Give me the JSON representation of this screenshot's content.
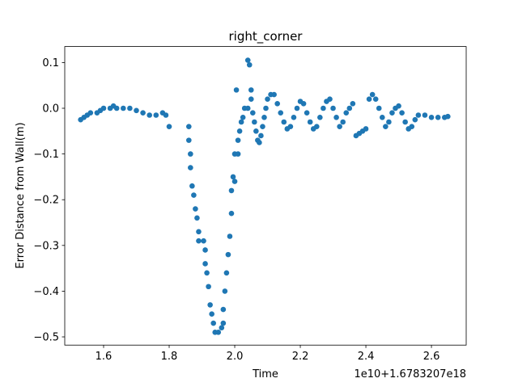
{
  "chart_data": {
    "type": "scatter",
    "title": "right_corner",
    "x_label": "Time",
    "y_label": "Error Distance from Wall(m)",
    "x_offset_text": "1e10+1.6783207e18",
    "color": "#1f77b4",
    "xlim": [
      1.4815,
      2.706
    ],
    "ylim": [
      -0.518,
      0.135
    ],
    "xticks": [
      1.6,
      1.8,
      {
        "value": 2,
        "label": "2.0"
      },
      2.2,
      2.4,
      2.6
    ],
    "yticks": [
      {
        "value": -0.5,
        "label": "−0.5"
      },
      {
        "value": -0.4,
        "label": "−0.4"
      },
      {
        "value": -0.3,
        "label": "−0.3"
      },
      {
        "value": -0.2,
        "label": "−0.2"
      },
      {
        "value": -0.1,
        "label": "−0.1"
      },
      {
        "value": 0,
        "label": "0.0"
      },
      0.1
    ],
    "x": [
      1.53,
      1.54,
      1.55,
      1.56,
      1.58,
      1.59,
      1.6,
      1.62,
      1.63,
      1.64,
      1.66,
      1.68,
      1.7,
      1.72,
      1.74,
      1.76,
      1.78,
      1.79,
      1.8,
      1.86,
      1.86,
      1.865,
      1.865,
      1.87,
      1.875,
      1.88,
      1.885,
      1.89,
      1.89,
      1.905,
      1.91,
      1.91,
      1.915,
      1.92,
      1.925,
      1.93,
      1.935,
      1.94,
      1.95,
      1.96,
      1.965,
      1.965,
      1.97,
      1.975,
      1.98,
      1.985,
      1.99,
      1.99,
      1.995,
      2.0,
      2.0,
      2.005,
      2.01,
      2.01,
      2.015,
      2.02,
      2.025,
      2.03,
      2.04,
      2.04,
      2.045,
      2.05,
      2.05,
      2.055,
      2.06,
      2.065,
      2.07,
      2.075,
      2.08,
      2.085,
      2.09,
      2.095,
      2.1,
      2.11,
      2.12,
      2.13,
      2.14,
      2.15,
      2.16,
      2.17,
      2.18,
      2.19,
      2.2,
      2.21,
      2.22,
      2.23,
      2.24,
      2.25,
      2.26,
      2.27,
      2.28,
      2.29,
      2.3,
      2.31,
      2.32,
      2.33,
      2.34,
      2.35,
      2.36,
      2.37,
      2.38,
      2.39,
      2.4,
      2.41,
      2.42,
      2.43,
      2.44,
      2.45,
      2.46,
      2.47,
      2.48,
      2.49,
      2.5,
      2.51,
      2.52,
      2.53,
      2.54,
      2.55,
      2.56,
      2.58,
      2.6,
      2.62,
      2.64,
      2.65
    ],
    "values": [
      -0.025,
      -0.02,
      -0.015,
      -0.01,
      -0.01,
      -0.005,
      0.0,
      0.0,
      0.005,
      0.0,
      0.0,
      0.0,
      -0.005,
      -0.01,
      -0.015,
      -0.015,
      -0.01,
      -0.015,
      -0.04,
      -0.04,
      -0.07,
      -0.1,
      -0.13,
      -0.17,
      -0.19,
      -0.22,
      -0.24,
      -0.27,
      -0.29,
      -0.29,
      -0.31,
      -0.34,
      -0.36,
      -0.39,
      -0.43,
      -0.45,
      -0.47,
      -0.49,
      -0.49,
      -0.48,
      -0.47,
      -0.44,
      -0.4,
      -0.36,
      -0.32,
      -0.28,
      -0.23,
      -0.18,
      -0.15,
      -0.16,
      -0.1,
      0.04,
      -0.1,
      -0.07,
      -0.05,
      -0.03,
      -0.02,
      0.0,
      0.0,
      0.105,
      0.095,
      0.04,
      0.02,
      -0.01,
      -0.03,
      -0.05,
      -0.07,
      -0.075,
      -0.06,
      -0.04,
      -0.02,
      0.0,
      0.02,
      0.03,
      0.03,
      0.01,
      -0.01,
      -0.03,
      -0.045,
      -0.04,
      -0.02,
      0.0,
      0.015,
      0.01,
      -0.01,
      -0.03,
      -0.045,
      -0.04,
      -0.02,
      0.0,
      0.015,
      0.02,
      0.0,
      -0.02,
      -0.04,
      -0.03,
      -0.01,
      0.0,
      0.01,
      -0.06,
      -0.055,
      -0.05,
      -0.045,
      0.02,
      0.03,
      0.02,
      0.0,
      -0.02,
      -0.04,
      -0.03,
      -0.01,
      0.0,
      0.005,
      -0.01,
      -0.03,
      -0.045,
      -0.04,
      -0.025,
      -0.015,
      -0.015,
      -0.02,
      -0.02,
      -0.02,
      -0.018
    ]
  }
}
